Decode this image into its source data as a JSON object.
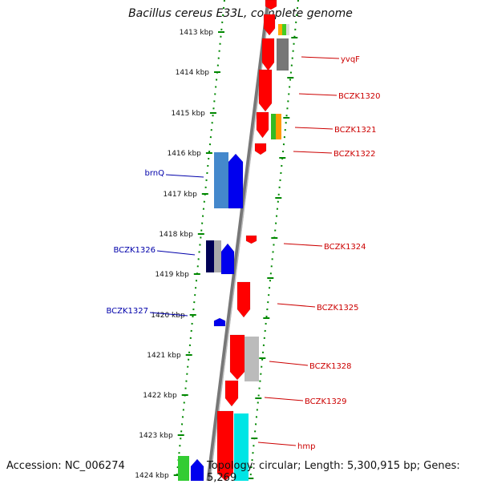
{
  "title": "Bacillus cereus E33L, complete genome",
  "accession": "Accession: NC_006274",
  "topology": "Topology: circular; Length: 5,300,915 bp; Genes: 5,269",
  "colors": {
    "forward_label": "#cc0000",
    "reverse_label": "#0000aa",
    "tick": "#008800",
    "backbone": "#777777"
  },
  "kbp_labels": [
    "1413 kbp",
    "1414 kbp",
    "1415 kbp",
    "1416 kbp",
    "1417 kbp",
    "1418 kbp",
    "1419 kbp",
    "1420 kbp",
    "1421 kbp",
    "1422 kbp",
    "1423 kbp",
    "1424 kbp"
  ],
  "forward_genes": [
    "yvqF",
    "BCZK1320",
    "BCZK1321",
    "BCZK1322",
    "BCZK1324",
    "BCZK1325",
    "BCZK1328",
    "BCZK1329",
    "hmp"
  ],
  "reverse_genes": [
    "brnQ",
    "BCZK1326",
    "BCZK1327"
  ]
}
